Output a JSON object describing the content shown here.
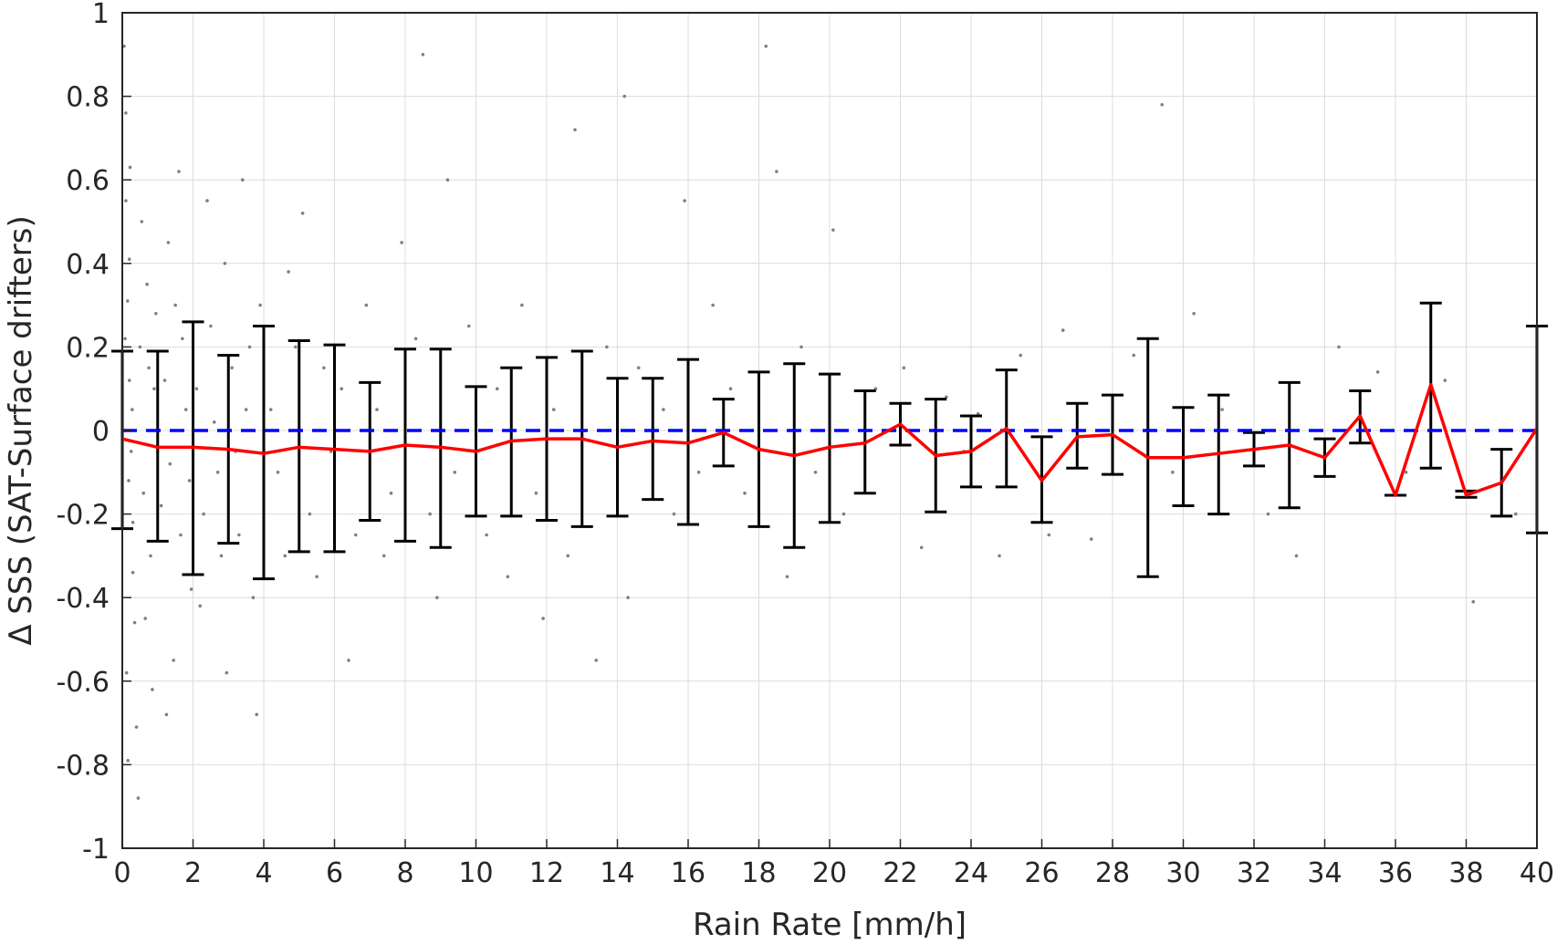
{
  "chart_data": {
    "type": "scatter",
    "title": "",
    "xlabel": "Rain Rate [mm/h]",
    "ylabel": "Δ SSS (SAT-Surface drifters)",
    "xlim": [
      0,
      40
    ],
    "ylim": [
      -1,
      1
    ],
    "grid": true,
    "xticks": [
      "0",
      "2",
      "4",
      "6",
      "8",
      "10",
      "12",
      "14",
      "16",
      "18",
      "20",
      "22",
      "24",
      "26",
      "28",
      "30",
      "32",
      "34",
      "36",
      "38",
      "40"
    ],
    "yticks": [
      "1",
      "0.8",
      "0.6",
      "0.4",
      "0.2",
      "0",
      "-0.2",
      "-0.4",
      "-0.6",
      "-0.8",
      "-1"
    ],
    "reference_line": {
      "y": 0,
      "style": "dashed",
      "color": "#0000ff"
    },
    "colors": {
      "scatter": "#808080",
      "mean_line": "#ff0000",
      "error_bars": "#000000",
      "reference": "#0000ff"
    },
    "mean_series": {
      "x": [
        0,
        1,
        2,
        3,
        4,
        5,
        6,
        7,
        8,
        9,
        10,
        11,
        12,
        13,
        14,
        15,
        16,
        17,
        18,
        19,
        20,
        21,
        22,
        23,
        24,
        25,
        26,
        27,
        28,
        29,
        30,
        31,
        32,
        33,
        34,
        35,
        36,
        37,
        38,
        39,
        40
      ],
      "y": [
        -0.02,
        -0.04,
        -0.04,
        -0.045,
        -0.055,
        -0.04,
        -0.045,
        -0.05,
        -0.035,
        -0.04,
        -0.05,
        -0.025,
        -0.02,
        -0.02,
        -0.04,
        -0.025,
        -0.03,
        -0.005,
        -0.045,
        -0.06,
        -0.04,
        -0.03,
        0.015,
        -0.06,
        -0.05,
        0.005,
        -0.12,
        -0.015,
        -0.01,
        -0.065,
        -0.065,
        -0.055,
        -0.045,
        -0.035,
        -0.065,
        0.035,
        -0.155,
        0.11,
        -0.155,
        -0.125,
        0.005
      ],
      "err_low": [
        -0.235,
        -0.265,
        -0.345,
        -0.27,
        -0.355,
        -0.29,
        -0.29,
        -0.215,
        -0.265,
        -0.28,
        -0.205,
        -0.205,
        -0.215,
        -0.23,
        -0.205,
        -0.165,
        -0.225,
        -0.085,
        -0.23,
        -0.28,
        -0.22,
        -0.15,
        -0.035,
        -0.195,
        -0.135,
        -0.135,
        -0.22,
        -0.09,
        -0.105,
        -0.35,
        -0.18,
        -0.2,
        -0.085,
        -0.185,
        -0.11,
        -0.03,
        -0.155,
        -0.09,
        -0.16,
        -0.205,
        -0.245
      ],
      "err_high": [
        0.19,
        0.19,
        0.26,
        0.18,
        0.25,
        0.215,
        0.205,
        0.115,
        0.195,
        0.195,
        0.105,
        0.15,
        0.175,
        0.19,
        0.125,
        0.125,
        0.17,
        0.075,
        0.14,
        0.16,
        0.135,
        0.095,
        0.065,
        0.075,
        0.035,
        0.145,
        -0.015,
        0.065,
        0.085,
        0.22,
        0.055,
        0.085,
        -0.005,
        0.115,
        -0.02,
        0.095,
        -0.155,
        0.305,
        -0.145,
        -0.045,
        0.25
      ]
    },
    "scatter_points": [
      [
        0.05,
        0.92
      ],
      [
        0.1,
        0.55
      ],
      [
        0.15,
        0.31
      ],
      [
        0.2,
        0.12
      ],
      [
        0.25,
        -0.05
      ],
      [
        0.3,
        -0.22
      ],
      [
        0.35,
        -0.46
      ],
      [
        0.4,
        -0.71
      ],
      [
        0.45,
        -0.88
      ],
      [
        0.1,
        0.76
      ],
      [
        0.2,
        0.41
      ],
      [
        0.3,
        -0.34
      ],
      [
        0.12,
        -0.58
      ],
      [
        0.08,
        0.22
      ],
      [
        0.18,
        -0.12
      ],
      [
        0.28,
        0.05
      ],
      [
        0.22,
        0.63
      ],
      [
        0.16,
        -0.79
      ],
      [
        0.5,
        0.2
      ],
      [
        0.6,
        -0.15
      ],
      [
        0.7,
        0.35
      ],
      [
        0.8,
        -0.3
      ],
      [
        0.9,
        0.1
      ],
      [
        1.0,
        -0.05
      ],
      [
        0.55,
        0.5
      ],
      [
        0.65,
        -0.45
      ],
      [
        0.75,
        0.15
      ],
      [
        0.85,
        -0.62
      ],
      [
        0.95,
        0.28
      ],
      [
        1.1,
        -0.18
      ],
      [
        1.2,
        0.12
      ],
      [
        1.35,
        -0.08
      ],
      [
        1.5,
        0.3
      ],
      [
        1.65,
        -0.25
      ],
      [
        1.8,
        0.05
      ],
      [
        1.95,
        -0.38
      ],
      [
        1.3,
        0.45
      ],
      [
        1.45,
        -0.55
      ],
      [
        1.7,
        0.22
      ],
      [
        1.9,
        -0.12
      ],
      [
        1.25,
        -0.68
      ],
      [
        1.6,
        0.62
      ],
      [
        2.1,
        0.1
      ],
      [
        2.3,
        -0.2
      ],
      [
        2.5,
        0.25
      ],
      [
        2.7,
        -0.1
      ],
      [
        2.9,
        0.4
      ],
      [
        2.2,
        -0.42
      ],
      [
        2.6,
        0.02
      ],
      [
        2.8,
        -0.3
      ],
      [
        2.4,
        0.55
      ],
      [
        2.95,
        -0.58
      ],
      [
        3.1,
        0.15
      ],
      [
        3.3,
        -0.25
      ],
      [
        3.5,
        0.05
      ],
      [
        3.7,
        -0.4
      ],
      [
        3.9,
        0.3
      ],
      [
        3.2,
        -0.05
      ],
      [
        3.6,
        0.2
      ],
      [
        3.8,
        -0.68
      ],
      [
        3.4,
        0.6
      ],
      [
        4.2,
        0.05
      ],
      [
        4.6,
        -0.3
      ],
      [
        4.9,
        0.2
      ],
      [
        4.4,
        -0.1
      ],
      [
        4.7,
        0.38
      ],
      [
        5.3,
        -0.2
      ],
      [
        5.7,
        0.15
      ],
      [
        5.5,
        -0.35
      ],
      [
        5.1,
        0.52
      ],
      [
        5.9,
        -0.05
      ],
      [
        6.2,
        0.1
      ],
      [
        6.6,
        -0.25
      ],
      [
        6.9,
        0.3
      ],
      [
        6.4,
        -0.55
      ],
      [
        7.2,
        0.05
      ],
      [
        7.6,
        -0.15
      ],
      [
        7.9,
        0.45
      ],
      [
        7.4,
        -0.3
      ],
      [
        8.3,
        0.22
      ],
      [
        8.7,
        -0.2
      ],
      [
        8.5,
        0.9
      ],
      [
        8.9,
        -0.4
      ],
      [
        9.2,
        0.6
      ],
      [
        9.4,
        -0.1
      ],
      [
        9.8,
        0.25
      ],
      [
        10.3,
        -0.25
      ],
      [
        10.6,
        0.1
      ],
      [
        10.9,
        -0.35
      ],
      [
        11.3,
        0.3
      ],
      [
        11.7,
        -0.15
      ],
      [
        12.2,
        0.05
      ],
      [
        11.9,
        -0.45
      ],
      [
        12.6,
        -0.3
      ],
      [
        12.8,
        0.72
      ],
      [
        13.4,
        -0.55
      ],
      [
        13.7,
        0.2
      ],
      [
        14.3,
        -0.4
      ],
      [
        14.6,
        0.15
      ],
      [
        14.2,
        0.8
      ],
      [
        15.3,
        0.05
      ],
      [
        15.6,
        -0.2
      ],
      [
        15.9,
        0.55
      ],
      [
        16.3,
        -0.1
      ],
      [
        16.7,
        0.3
      ],
      [
        17.2,
        0.1
      ],
      [
        17.6,
        -0.15
      ],
      [
        18.2,
        0.92
      ],
      [
        18.5,
        0.62
      ],
      [
        18.8,
        -0.35
      ],
      [
        19.2,
        0.2
      ],
      [
        19.6,
        -0.1
      ],
      [
        20.1,
        0.48
      ],
      [
        20.4,
        -0.2
      ],
      [
        21.3,
        0.1
      ],
      [
        22.1,
        0.15
      ],
      [
        22.6,
        -0.28
      ],
      [
        23.3,
        0.08
      ],
      [
        23.8,
        -0.05
      ],
      [
        24.2,
        0.04
      ],
      [
        24.8,
        -0.3
      ],
      [
        25.4,
        0.18
      ],
      [
        26.2,
        -0.25
      ],
      [
        26.6,
        0.24
      ],
      [
        27.4,
        -0.26
      ],
      [
        28.6,
        0.18
      ],
      [
        29.4,
        0.78
      ],
      [
        29.7,
        -0.1
      ],
      [
        30.3,
        0.28
      ],
      [
        31.1,
        0.05
      ],
      [
        32.4,
        -0.2
      ],
      [
        33.2,
        -0.3
      ],
      [
        34.4,
        0.2
      ],
      [
        35.5,
        0.14
      ],
      [
        36.3,
        -0.1
      ],
      [
        37.4,
        0.12
      ],
      [
        38.2,
        -0.41
      ],
      [
        39.4,
        -0.2
      ]
    ]
  }
}
